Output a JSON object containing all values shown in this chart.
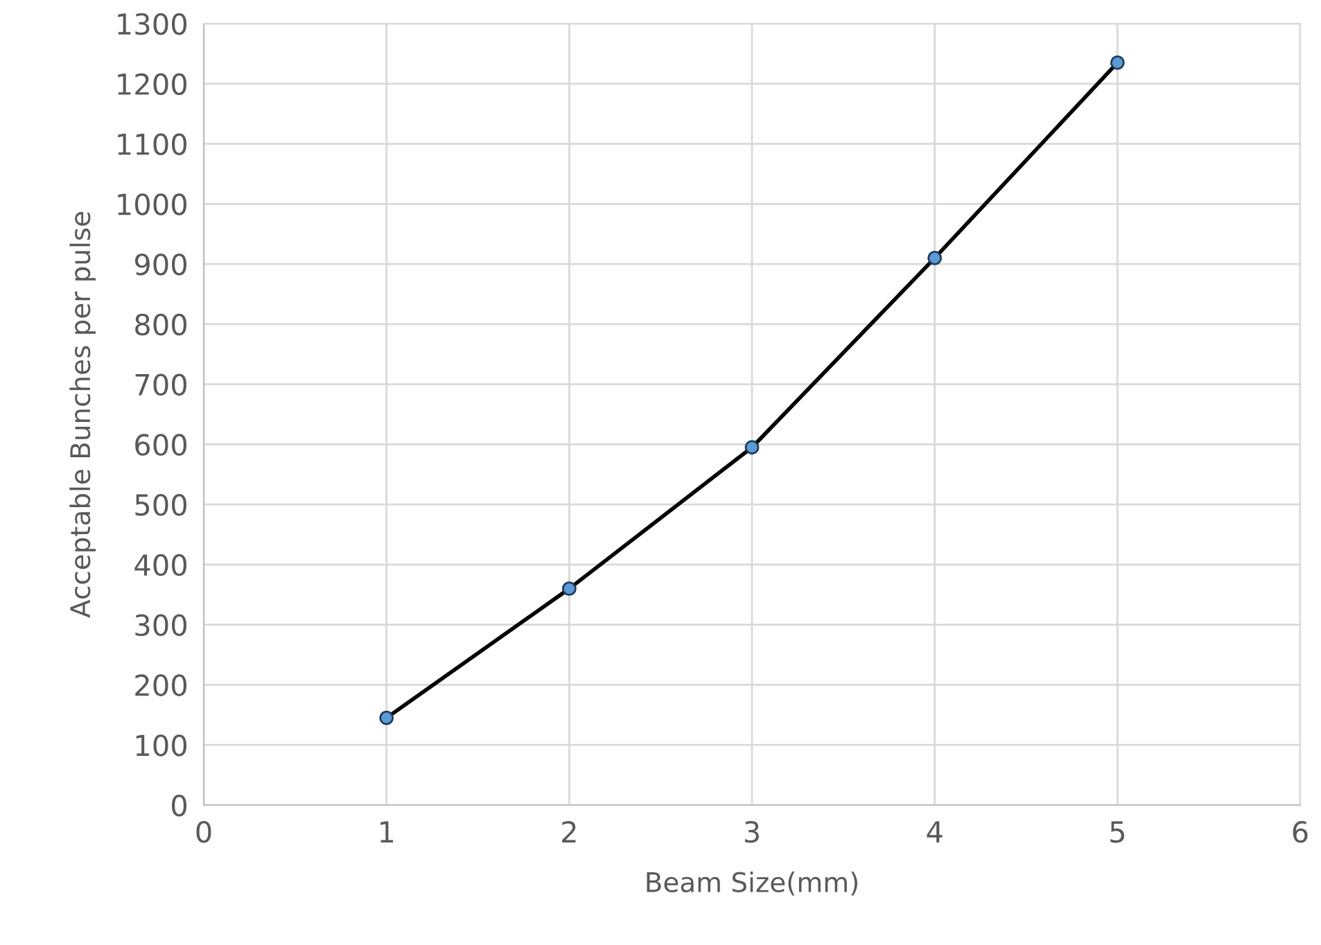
{
  "chart_data": {
    "type": "line",
    "xlabel": "Beam Size(mm)",
    "ylabel": "Acceptable Bunches per pulse",
    "x": [
      1,
      2,
      3,
      4,
      5
    ],
    "series": [
      {
        "color": "#000000",
        "values": [
          145,
          360,
          595,
          910,
          1235
        ]
      }
    ],
    "xlim": [
      0,
      6
    ],
    "xticks": [
      0,
      1,
      2,
      3,
      4,
      5,
      6
    ],
    "ylim": [
      0,
      1300
    ],
    "yticks": [
      0,
      100,
      200,
      300,
      400,
      500,
      600,
      700,
      800,
      900,
      1000,
      1100,
      1200,
      1300
    ],
    "grid": true,
    "marker": "circle",
    "line_style": "solid"
  }
}
